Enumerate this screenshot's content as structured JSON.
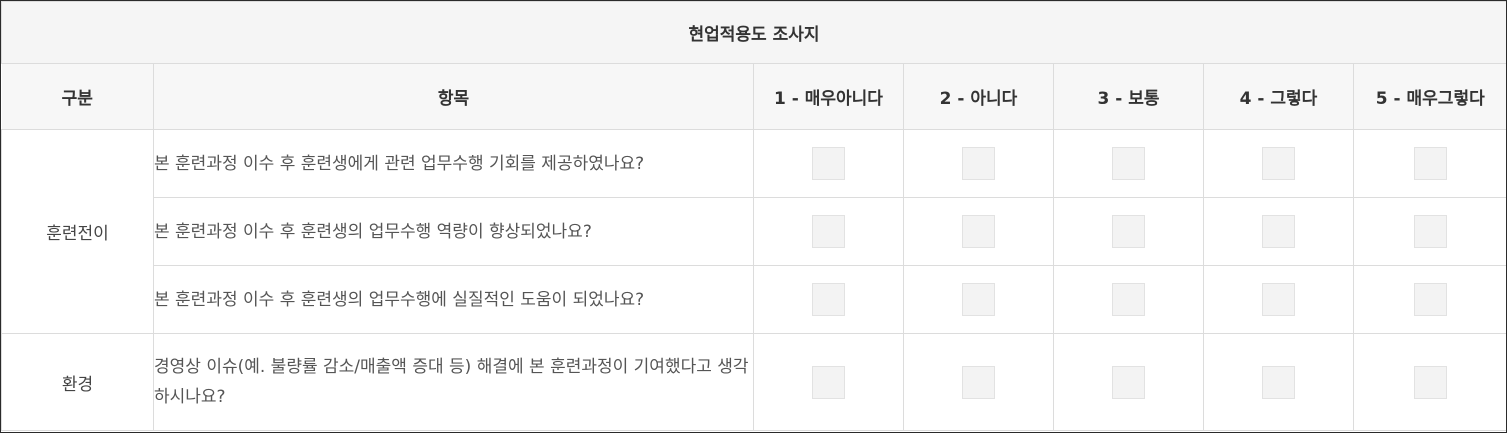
{
  "survey": {
    "title": "현업적용도 조사지",
    "headers": {
      "category": "구분",
      "item": "항목",
      "options": [
        "1 - 매우아니다",
        "2 - 아니다",
        "3 - 보통",
        "4 - 그렇다",
        "5 - 매우그렇다"
      ]
    },
    "groups": [
      {
        "category": "훈련전이",
        "questions": [
          "본 훈련과정 이수 후 훈련생에게 관련 업무수행 기회를 제공하였나요?",
          "본 훈련과정 이수 후 훈련생의 업무수행 역량이 향상되었나요?",
          "본 훈련과정 이수 후 훈련생의 업무수행에 실질적인 도움이 되었나요?"
        ]
      },
      {
        "category": "환경",
        "questions": [
          "경영상 이슈(예. 불량률 감소/매출액 증대 등) 해결에 본 훈련과정이 기여했다고 생각하시나요?"
        ]
      }
    ]
  }
}
